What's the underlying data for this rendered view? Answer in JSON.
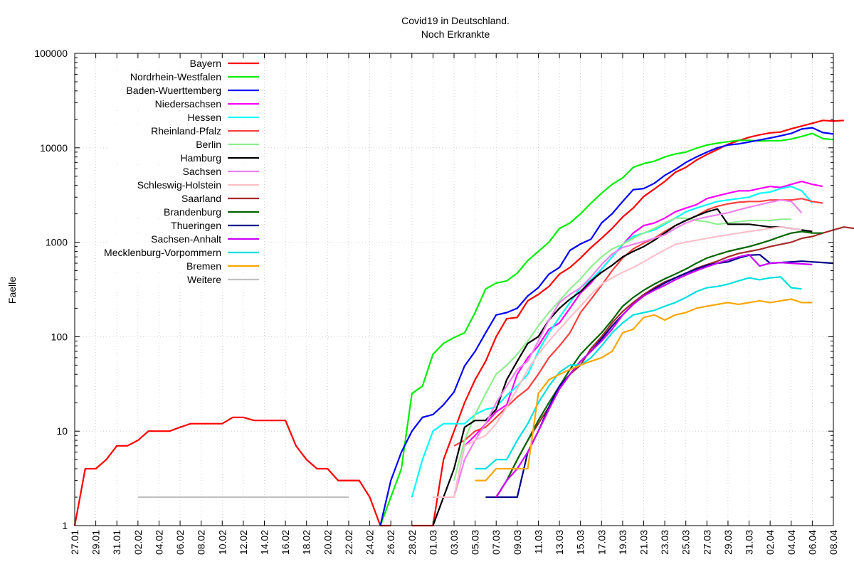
{
  "chart_data": {
    "type": "line",
    "title": "Covid19 in Deutschland.",
    "subtitle": "Noch Erkrankte",
    "ylabel": "Faelle",
    "xlabel": "",
    "y_scale": "log",
    "ylim": [
      1,
      100000
    ],
    "y_ticks": [
      "1",
      "10",
      "100",
      "1000",
      "10000",
      "100000"
    ],
    "x_start": "27.01",
    "x_end": "08.04",
    "x_ticks": [
      "27.01",
      "29.01",
      "31.01",
      "02.02",
      "04.02",
      "06.02",
      "08.02",
      "10.02",
      "12.02",
      "14.02",
      "16.02",
      "18.02",
      "20.02",
      "22.02",
      "24.02",
      "26.02",
      "28.02",
      "01.03",
      "03.03",
      "05.03",
      "07.03",
      "09.03",
      "11.03",
      "13.03",
      "15.03",
      "17.03",
      "19.03",
      "21.03",
      "23.03",
      "25.03",
      "27.03",
      "29.03",
      "31.03",
      "02.04",
      "04.04",
      "06.04",
      "08.04"
    ],
    "grid": true,
    "legend_position": "top-left",
    "series": [
      {
        "name": "Bayern",
        "color": "#ff0000",
        "start": "27.01",
        "values": [
          1,
          4,
          4,
          5,
          7,
          7,
          8,
          10,
          10,
          10,
          11,
          12,
          12,
          12,
          12,
          14,
          14,
          13,
          13,
          13,
          13,
          7,
          5,
          4,
          4,
          3,
          3,
          3,
          2,
          1,
          1,
          null,
          1,
          1,
          1,
          5,
          10,
          20,
          35,
          55,
          100,
          155,
          160,
          240,
          280,
          340,
          460,
          540,
          680,
          880,
          1100,
          1400,
          1850,
          2300,
          3050,
          3650,
          4400,
          5500,
          6200,
          7400,
          8500,
          9600,
          10900,
          11900,
          12900,
          13700,
          14400,
          14700,
          15900,
          17000,
          18200,
          19500,
          19200,
          19500
        ]
      },
      {
        "name": "Nordrhein-Westfalen",
        "color": "#00ee00",
        "start": "25.02",
        "values": [
          1,
          2,
          4,
          25,
          30,
          65,
          85,
          98,
          110,
          180,
          320,
          370,
          390,
          470,
          640,
          800,
          1000,
          1400,
          1600,
          2000,
          2600,
          3300,
          4100,
          4800,
          6200,
          6800,
          7200,
          8000,
          8600,
          9000,
          9900,
          10700,
          11200,
          11600,
          12000,
          12000,
          11800,
          11900,
          11900,
          12400,
          13200,
          14200,
          12500,
          12200
        ]
      },
      {
        "name": "Baden-Wuerttemberg",
        "color": "#0000ff",
        "start": "25.02",
        "values": [
          1,
          3,
          6,
          10,
          14,
          15,
          19,
          26,
          49,
          70,
          110,
          170,
          180,
          200,
          270,
          330,
          460,
          540,
          820,
          960,
          1080,
          1600,
          2000,
          2700,
          3600,
          3700,
          4200,
          5100,
          5900,
          7000,
          8000,
          9000,
          10000,
          10700,
          11000,
          11500,
          12100,
          12700,
          13400,
          14200,
          15800,
          16300,
          14500,
          14000
        ]
      },
      {
        "name": "Niedersachsen",
        "color": "#ff00ff",
        "start": "03.03",
        "values": [
          2,
          7,
          9,
          12,
          16,
          19,
          40,
          60,
          80,
          120,
          140,
          200,
          290,
          370,
          520,
          700,
          940,
          1250,
          1500,
          1600,
          1800,
          2100,
          2300,
          2500,
          2900,
          3100,
          3300,
          3500,
          3500,
          3700,
          3900,
          3800,
          4100,
          4400,
          4100,
          3900
        ]
      },
      {
        "name": "Hessen",
        "color": "#00ffff",
        "start": "28.02",
        "values": [
          2,
          5,
          10,
          12,
          12,
          12,
          15,
          17,
          18,
          24,
          30,
          40,
          70,
          110,
          160,
          230,
          330,
          400,
          520,
          700,
          950,
          1150,
          1250,
          1350,
          1550,
          1800,
          2100,
          2300,
          2500,
          2700,
          2800,
          2900,
          3000,
          3300,
          3400,
          3700,
          3900,
          3500,
          2600
        ]
      },
      {
        "name": "Rheinland-Pfalz",
        "color": "#ff4040",
        "start": "03.03",
        "values": [
          7,
          8,
          10,
          11,
          14,
          18,
          23,
          28,
          40,
          60,
          80,
          110,
          180,
          250,
          350,
          500,
          680,
          850,
          980,
          1100,
          1300,
          1500,
          1700,
          1900,
          2200,
          2400,
          2550,
          2650,
          2700,
          2700,
          2800,
          2800,
          2800,
          2900,
          2700,
          2600
        ]
      },
      {
        "name": "Berlin",
        "color": "#90ee90",
        "start": "03.03",
        "values": [
          3,
          8,
          15,
          25,
          40,
          50,
          65,
          90,
          130,
          180,
          240,
          320,
          410,
          550,
          700,
          850,
          950,
          1100,
          1250,
          1400,
          1600,
          1800,
          1800,
          1700,
          1650,
          1550,
          1600,
          1650,
          1700,
          1700,
          1700,
          1750,
          1750
        ]
      },
      {
        "name": "Hamburg",
        "color": "#000000",
        "start": "01.03",
        "values": [
          1,
          2,
          4,
          11,
          13,
          13,
          17,
          35,
          55,
          85,
          100,
          150,
          200,
          250,
          300,
          390,
          480,
          570,
          700,
          800,
          900,
          1050,
          1250,
          1500,
          1700,
          1900,
          2100,
          2250,
          1550,
          1550,
          1550,
          1500,
          1450,
          1450,
          1400,
          1350,
          1300
        ]
      },
      {
        "name": "Sachsen",
        "color": "#ee82ee",
        "start": "03.03",
        "values": [
          2,
          5,
          8,
          12,
          20,
          30,
          45,
          55,
          90,
          150,
          230,
          280,
          330,
          430,
          580,
          750,
          880,
          950,
          1020,
          1100,
          1200,
          1400,
          1600,
          1750,
          1850,
          1950,
          2050,
          2200,
          2350,
          2500,
          2650,
          2800,
          2700,
          2050
        ]
      },
      {
        "name": "Schleswig-Holstein",
        "color": "#ffc0cb",
        "start": "01.03",
        "values": [
          2,
          2,
          2,
          7,
          8,
          9,
          12,
          18,
          28,
          45,
          65,
          90,
          120,
          160,
          210,
          280,
          360,
          420,
          480,
          540,
          620,
          720,
          830,
          950,
          1000,
          1050,
          1100,
          1150,
          1200,
          1250,
          1300,
          1350,
          1400,
          1450,
          1400,
          1350
        ]
      },
      {
        "name": "Saarland",
        "color": "#a52a2a",
        "start": "07.03",
        "values": [
          2,
          3,
          5,
          8,
          12,
          18,
          28,
          40,
          50,
          75,
          100,
          140,
          185,
          230,
          280,
          330,
          380,
          420,
          470,
          530,
          580,
          630,
          700,
          760,
          800,
          840,
          900,
          950,
          1000,
          1100,
          1150,
          1250,
          1350,
          1450,
          1400
        ]
      },
      {
        "name": "Brandenburg",
        "color": "#006400",
        "start": "07.03",
        "values": [
          2,
          3,
          5,
          8,
          13,
          20,
          30,
          45,
          65,
          85,
          110,
          150,
          210,
          260,
          310,
          360,
          410,
          460,
          520,
          600,
          680,
          740,
          800,
          850,
          900,
          970,
          1050,
          1150,
          1250,
          1300,
          1250,
          1250
        ]
      },
      {
        "name": "Thueringen",
        "color": "#00008b",
        "start": "06.03",
        "values": [
          2,
          2,
          2,
          2,
          6,
          10,
          18,
          30,
          40,
          55,
          70,
          95,
          130,
          170,
          220,
          270,
          320,
          370,
          420,
          470,
          520,
          570,
          600,
          620,
          680,
          730,
          740,
          600,
          610,
          620,
          630,
          620,
          610,
          600
        ]
      },
      {
        "name": "Sachsen-Anhalt",
        "color": "#cc00ff",
        "start": "07.03",
        "values": [
          2,
          3,
          4,
          6,
          10,
          17,
          28,
          40,
          55,
          70,
          90,
          120,
          170,
          220,
          270,
          310,
          350,
          400,
          450,
          500,
          550,
          600,
          650,
          700,
          740,
          560,
          600,
          610,
          600,
          590,
          580
        ]
      },
      {
        "name": "Mecklenburg-Vorpommern",
        "color": "#00e0e0",
        "start": "05.03",
        "values": [
          4,
          4,
          5,
          5,
          8,
          12,
          20,
          30,
          42,
          50,
          50,
          60,
          80,
          110,
          140,
          170,
          180,
          190,
          210,
          230,
          260,
          300,
          330,
          340,
          360,
          390,
          420,
          400,
          420,
          430,
          330,
          320
        ]
      },
      {
        "name": "Bremen",
        "color": "#ffa500",
        "start": "05.03",
        "values": [
          3,
          3,
          4,
          4,
          4,
          4,
          25,
          35,
          40,
          45,
          50,
          55,
          60,
          70,
          110,
          120,
          160,
          170,
          150,
          170,
          180,
          200,
          210,
          220,
          230,
          220,
          230,
          240,
          230,
          240,
          250,
          230,
          230
        ]
      },
      {
        "name": "Weitere",
        "color": "#c0c0c0",
        "start": "02.02",
        "values": [
          2,
          2,
          2,
          2,
          2,
          2,
          2,
          2,
          2,
          2,
          2,
          2,
          2,
          2,
          2,
          2,
          2,
          2,
          2,
          2,
          2
        ]
      }
    ]
  }
}
